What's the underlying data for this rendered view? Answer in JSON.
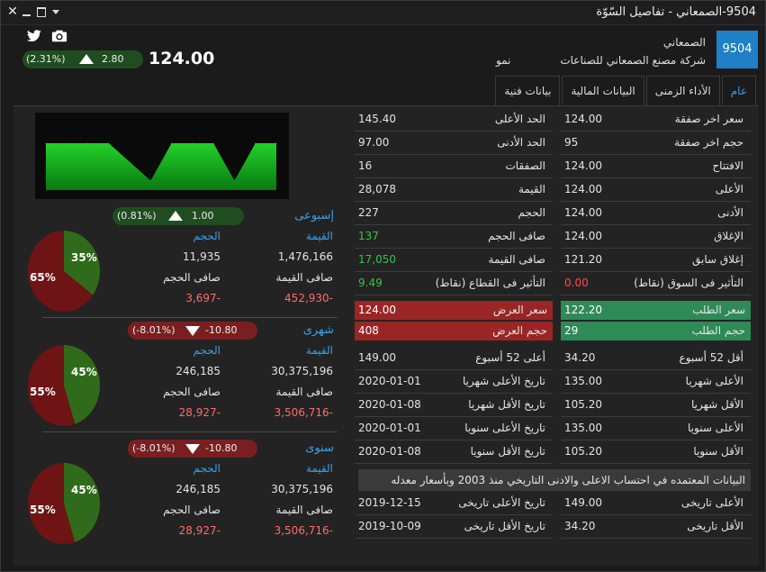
{
  "window": {
    "title": "9504-الصمعاني - تفاصيل السّوّة",
    "close_icon": "close-icon",
    "minimize_icon": "minimize-icon",
    "restore_icon": "restore-icon",
    "menu_icon": "chevron-down-icon"
  },
  "header": {
    "code": "9504",
    "short_name": "الصمعاني",
    "full_name": "شركة مصنع الصمعاني للصناعات",
    "sector": "نمو",
    "price": "124.00",
    "change_value": "2.80",
    "change_pct": "(2.31%)",
    "accent_color": "#1f7fc7"
  },
  "tabs": [
    {
      "label": "عام",
      "active": true
    },
    {
      "label": "الأداء الزمنى"
    },
    {
      "label": "البيانات المالية"
    },
    {
      "label": "بيانات فنية"
    }
  ],
  "table_right": [
    {
      "label": "سعر اخر صفقة",
      "value": "124.00"
    },
    {
      "label": "حجم اخر صفقة",
      "value": "95"
    },
    {
      "label": "الافتتاح",
      "value": "124.00"
    },
    {
      "label": "الأعلى",
      "value": "124.00"
    },
    {
      "label": "الأدنى",
      "value": "124.00"
    },
    {
      "label": "الإغلاق",
      "value": "124.00"
    },
    {
      "label": "إغلاق سابق",
      "value": "121.20"
    },
    {
      "label": "التأثير فى السوق (نقاط)",
      "value": "0.00"
    }
  ],
  "table_left": [
    {
      "label": "الحد الأعلى",
      "value": "145.40"
    },
    {
      "label": "الحد الأدنى",
      "value": "97.00"
    },
    {
      "label": "الصفقات",
      "value": "16"
    },
    {
      "label": "القيمة",
      "value": "28,078"
    },
    {
      "label": "الحجم",
      "value": "227"
    },
    {
      "label": "صافى الحجم",
      "value": "137"
    },
    {
      "label": "صافى القيمة",
      "value": "17,050"
    },
    {
      "label": "التأثير فى القطاع (نقاط)",
      "value": "9.49"
    }
  ],
  "bid": {
    "price_label": "سعر الطلب",
    "price": "122.20",
    "volume_label": "حجم الطلب",
    "volume": "29"
  },
  "offer": {
    "price_label": "سعر العرض",
    "price": "124.00",
    "volume_label": "حجم العرض",
    "volume": "408"
  },
  "range_right": [
    {
      "label": "أقل 52 أسبوع",
      "value": "34.20"
    },
    {
      "label": "الأعلى شهريا",
      "value": "135.00"
    },
    {
      "label": "الأقل شهريا",
      "value": "105.20"
    },
    {
      "label": "الأعلى سنويا",
      "value": "135.00"
    },
    {
      "label": "الأقل سنويا",
      "value": "105.20"
    }
  ],
  "range_left": [
    {
      "label": "أعلى 52 أسبوع",
      "value": "149.00"
    },
    {
      "label": "تاريخ الأعلى شهريا",
      "value": "2020-01-01"
    },
    {
      "label": "تاريخ الأقل شهريا",
      "value": "2020-01-08"
    },
    {
      "label": "تاريخ الأعلى سنويا",
      "value": "2020-01-01"
    },
    {
      "label": "تاريخ الأقل سنويا",
      "value": "2020-01-08"
    }
  ],
  "historic_note": "البيانات المعتمده في احتساب الاعلى والادنى التاريخي منذ 2003 وبأسعار معدله",
  "historic_right": [
    {
      "label": "الأعلى تاريخى",
      "value": "149.00"
    },
    {
      "label": "الأقل تاريخى",
      "value": "34.20"
    }
  ],
  "historic_left": [
    {
      "label": "تاريخ الأعلى تاريخى",
      "value": "2019-12-15"
    },
    {
      "label": "تاريخ الأقل تاريخى",
      "value": "2019-10-09"
    }
  ],
  "periods": [
    {
      "title": "إسبوعى",
      "change_value": "1.00",
      "change_pct": "(0.81%)",
      "direction": "up",
      "value_label": "القيمة",
      "value": "1,476,166",
      "volume_label": "الحجم",
      "volume": "11,935",
      "net_value_label": "صافى القيمة",
      "net_value": "452,930-",
      "net_volume_label": "صافى الحجم",
      "net_volume": "3,697-",
      "pie_green_pct": 35,
      "pie_red_pct": 65,
      "pie_green_label": "35%",
      "pie_red_label": "65%"
    },
    {
      "title": "شهرى",
      "change_value": "-10.80",
      "change_pct": "(-8.01%)",
      "direction": "down",
      "value_label": "القيمة",
      "value": "30,375,196",
      "volume_label": "الحجم",
      "volume": "246,185",
      "net_value_label": "صافى القيمة",
      "net_value": "3,506,716-",
      "net_volume_label": "صافى الحجم",
      "net_volume": "28,927-",
      "pie_green_pct": 45,
      "pie_red_pct": 55,
      "pie_green_label": "45%",
      "pie_red_label": "55%"
    },
    {
      "title": "سنوى",
      "change_value": "-10.80",
      "change_pct": "(-8.01%)",
      "direction": "down",
      "value_label": "القيمة",
      "value": "30,375,196",
      "volume_label": "الحجم",
      "volume": "246,185",
      "net_value_label": "صافى القيمة",
      "net_value": "3,506,716-",
      "net_volume_label": "صافى الحجم",
      "net_volume": "28,927-",
      "pie_green_pct": 45,
      "pie_red_pct": 55,
      "pie_green_label": "45%",
      "pie_red_label": "55%"
    }
  ],
  "colors": {
    "up": "#38c24a",
    "down": "#ff4b4b",
    "pie_green": "#2f6b1a",
    "pie_red": "#6e1414",
    "chart_fill": "#1fb81f"
  },
  "icons": {
    "twitter": "twitter-icon",
    "camera": "camera-icon"
  },
  "chart_data": {
    "type": "area",
    "values": [
      100,
      100,
      100,
      100,
      60,
      20,
      100,
      100,
      100,
      20,
      100,
      100
    ],
    "title": "",
    "xlabel": "",
    "ylabel": ""
  }
}
